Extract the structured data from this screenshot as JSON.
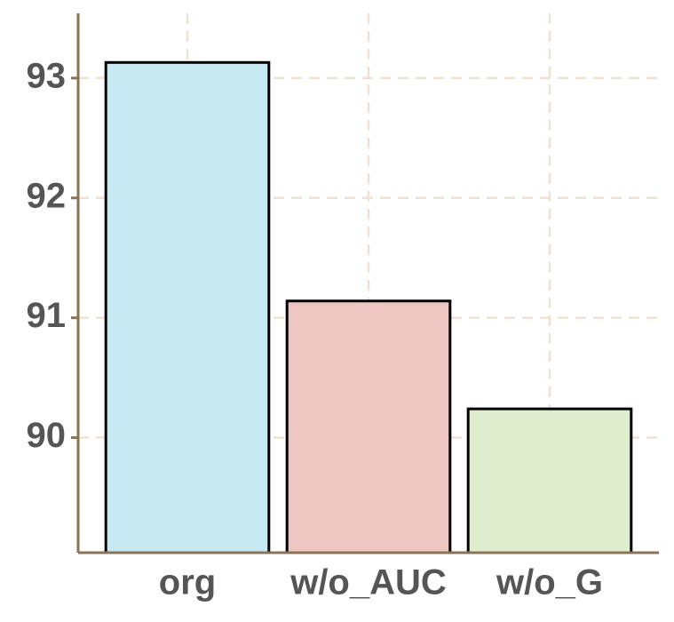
{
  "chart_data": {
    "type": "bar",
    "categories": [
      "org",
      "w/o_AUC",
      "w/o_G"
    ],
    "values": [
      93.13,
      91.14,
      90.24
    ],
    "colors": [
      "#c6e8f0",
      "#eec7c3",
      "#dfedcf"
    ],
    "ylim": [
      89.04,
      93.54
    ],
    "yticks": [
      90,
      91,
      92,
      93
    ],
    "grid": true
  }
}
